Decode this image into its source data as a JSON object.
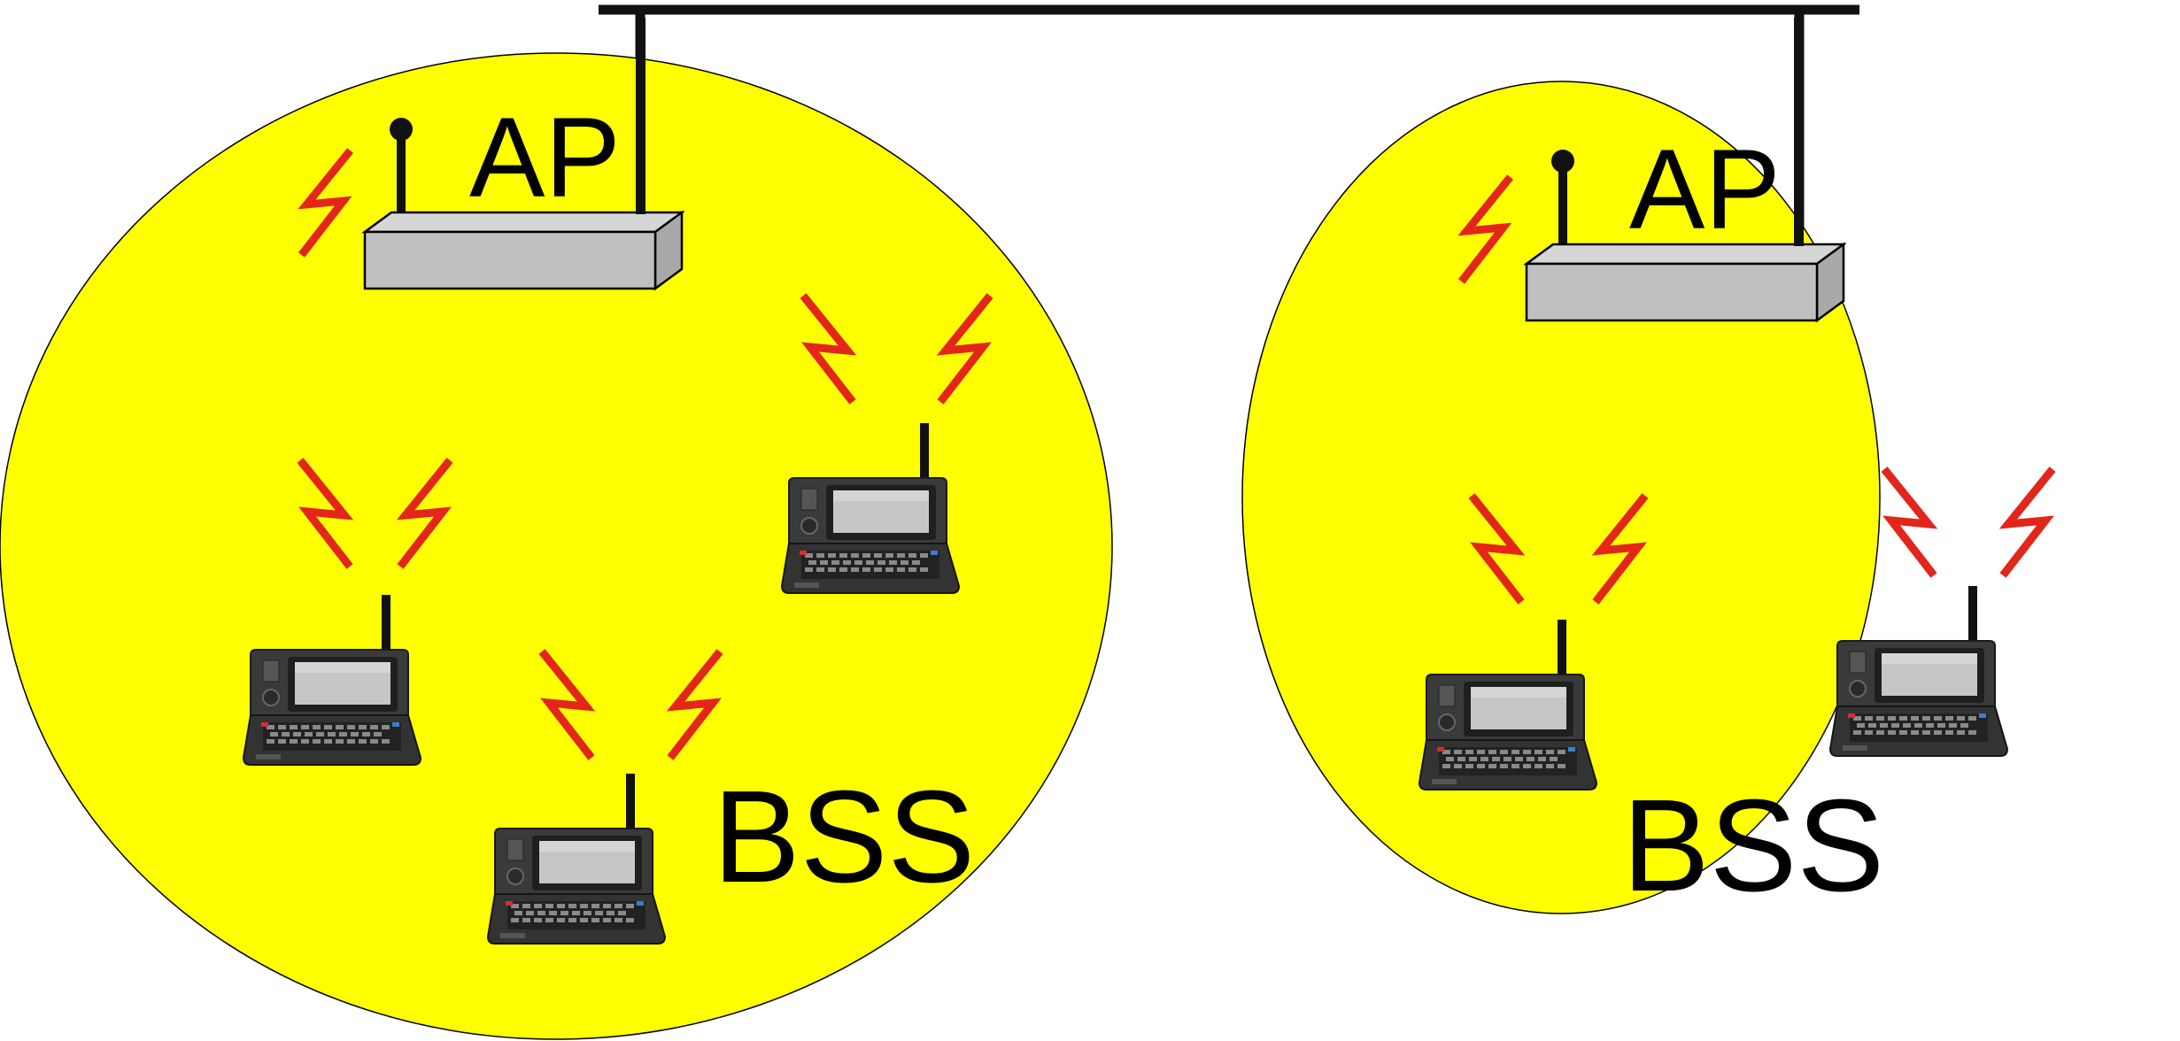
{
  "colors": {
    "cell_fill": "#ffff00",
    "cell_stroke": "#000000",
    "ap_box": "#c0c0c0",
    "backbone": "#111111",
    "signal": "#e3251a",
    "laptop_body": "#3b3b3b",
    "laptop_screen": "#c4c4c4"
  },
  "cells": [
    {
      "ap_label": "AP",
      "bss_label": "BSS",
      "stations": 3,
      "icons": [
        "access-point-icon",
        "laptop-icon",
        "laptop-icon",
        "laptop-icon",
        "wireless-signal-icon"
      ]
    },
    {
      "ap_label": "AP",
      "bss_label": "BSS",
      "stations": 2,
      "icons": [
        "access-point-icon",
        "laptop-icon",
        "laptop-icon",
        "wireless-signal-icon"
      ]
    }
  ]
}
